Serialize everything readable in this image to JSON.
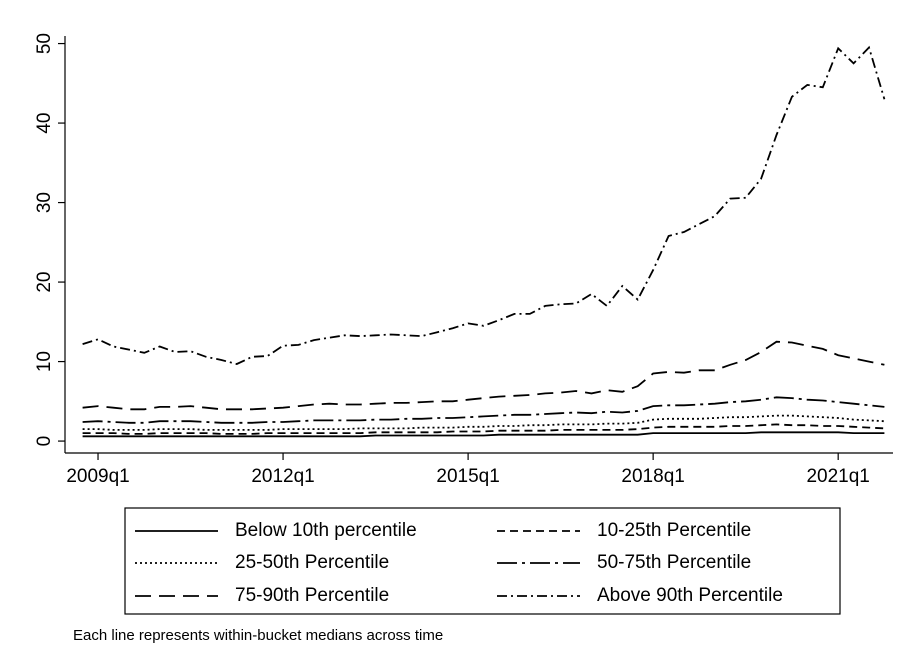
{
  "chart_data": {
    "type": "line",
    "x": [
      "2008q4",
      "2009q1",
      "2009q2",
      "2009q3",
      "2009q4",
      "2010q1",
      "2010q2",
      "2010q3",
      "2010q4",
      "2011q1",
      "2011q2",
      "2011q3",
      "2011q4",
      "2012q1",
      "2012q2",
      "2012q3",
      "2012q4",
      "2013q1",
      "2013q2",
      "2013q3",
      "2013q4",
      "2014q1",
      "2014q2",
      "2014q3",
      "2014q4",
      "2015q1",
      "2015q2",
      "2015q3",
      "2015q4",
      "2016q1",
      "2016q2",
      "2016q3",
      "2016q4",
      "2017q1",
      "2017q2",
      "2017q3",
      "2017q4",
      "2018q1",
      "2018q2",
      "2018q3",
      "2018q4",
      "2019q1",
      "2019q2",
      "2019q3",
      "2019q4",
      "2020q1",
      "2020q2",
      "2020q3",
      "2020q4",
      "2021q1",
      "2021q2",
      "2021q3",
      "2021q4"
    ],
    "series": [
      {
        "name": "Below 10th percentile",
        "color": "#000000",
        "dash": "none",
        "values": [
          0.6,
          0.6,
          0.6,
          0.6,
          0.6,
          0.6,
          0.6,
          0.6,
          0.6,
          0.6,
          0.6,
          0.6,
          0.6,
          0.6,
          0.6,
          0.6,
          0.6,
          0.6,
          0.6,
          0.7,
          0.7,
          0.7,
          0.7,
          0.7,
          0.7,
          0.7,
          0.7,
          0.8,
          0.8,
          0.8,
          0.8,
          0.8,
          0.8,
          0.8,
          0.8,
          0.8,
          0.8,
          1.0,
          1.0,
          1.0,
          1.0,
          1.0,
          1.0,
          1.0,
          1.1,
          1.1,
          1.1,
          1.1,
          1.1,
          1.1,
          1.0,
          1.0,
          1.0
        ]
      },
      {
        "name": "10-25th Percentile",
        "color": "#000000",
        "dash": "8,5",
        "values": [
          1.0,
          1.0,
          1.0,
          0.9,
          0.9,
          1.0,
          1.0,
          1.0,
          1.0,
          0.9,
          0.9,
          0.9,
          1.0,
          1.0,
          1.0,
          1.0,
          1.0,
          1.0,
          1.0,
          1.1,
          1.1,
          1.1,
          1.1,
          1.1,
          1.2,
          1.2,
          1.2,
          1.3,
          1.3,
          1.3,
          1.3,
          1.4,
          1.4,
          1.4,
          1.4,
          1.4,
          1.5,
          1.7,
          1.8,
          1.8,
          1.8,
          1.8,
          1.9,
          1.9,
          2.0,
          2.1,
          2.0,
          2.0,
          1.9,
          1.9,
          1.8,
          1.7,
          1.6
        ]
      },
      {
        "name": "25-50th Percentile",
        "color": "#000000",
        "dash": "2,3",
        "values": [
          1.5,
          1.5,
          1.4,
          1.4,
          1.4,
          1.5,
          1.5,
          1.5,
          1.4,
          1.4,
          1.4,
          1.4,
          1.4,
          1.5,
          1.5,
          1.5,
          1.5,
          1.5,
          1.6,
          1.6,
          1.6,
          1.6,
          1.7,
          1.7,
          1.7,
          1.8,
          1.8,
          1.9,
          1.9,
          2.0,
          2.0,
          2.1,
          2.1,
          2.1,
          2.2,
          2.2,
          2.3,
          2.7,
          2.8,
          2.8,
          2.8,
          2.9,
          3.0,
          3.0,
          3.1,
          3.2,
          3.2,
          3.1,
          3.0,
          2.9,
          2.7,
          2.6,
          2.5
        ]
      },
      {
        "name": "50-75th Percentile",
        "color": "#000000",
        "dash": "20,5,3,5",
        "values": [
          2.4,
          2.5,
          2.4,
          2.3,
          2.3,
          2.5,
          2.5,
          2.5,
          2.4,
          2.3,
          2.3,
          2.3,
          2.4,
          2.4,
          2.5,
          2.6,
          2.6,
          2.6,
          2.6,
          2.7,
          2.7,
          2.8,
          2.8,
          2.9,
          2.9,
          3.0,
          3.1,
          3.2,
          3.3,
          3.3,
          3.4,
          3.5,
          3.6,
          3.5,
          3.7,
          3.6,
          3.8,
          4.4,
          4.5,
          4.5,
          4.6,
          4.7,
          4.9,
          5.0,
          5.2,
          5.5,
          5.4,
          5.2,
          5.1,
          4.9,
          4.7,
          4.5,
          4.3
        ]
      },
      {
        "name": "75-90th Percentile",
        "color": "#000000",
        "dash": "16,8",
        "values": [
          4.2,
          4.4,
          4.2,
          4.0,
          4.0,
          4.3,
          4.3,
          4.4,
          4.2,
          4.0,
          4.0,
          4.0,
          4.1,
          4.2,
          4.4,
          4.6,
          4.7,
          4.6,
          4.6,
          4.7,
          4.8,
          4.8,
          4.9,
          5.0,
          5.0,
          5.2,
          5.4,
          5.6,
          5.7,
          5.8,
          6.0,
          6.1,
          6.3,
          6.0,
          6.4,
          6.2,
          6.9,
          8.5,
          8.7,
          8.6,
          8.9,
          8.9,
          9.6,
          10.2,
          11.2,
          12.5,
          12.4,
          12.0,
          11.6,
          10.8,
          10.4,
          10.0,
          9.6
        ]
      },
      {
        "name": "Above 90th Percentile",
        "color": "#000000",
        "dash": "10,4,2,4",
        "values": [
          12.2,
          12.8,
          11.9,
          11.5,
          11.1,
          11.9,
          11.2,
          11.3,
          10.6,
          10.2,
          9.7,
          10.6,
          10.7,
          12.0,
          12.1,
          12.7,
          13.0,
          13.3,
          13.2,
          13.3,
          13.4,
          13.3,
          13.2,
          13.7,
          14.2,
          14.8,
          14.5,
          15.2,
          16.0,
          16.0,
          17.0,
          17.2,
          17.3,
          18.5,
          17.0,
          19.5,
          17.8,
          21.5,
          25.8,
          26.3,
          27.3,
          28.3,
          30.5,
          30.6,
          33.0,
          38.5,
          43.3,
          44.8,
          44.5,
          49.4,
          47.5,
          49.5,
          43.0
        ]
      }
    ],
    "xticks": [
      "2009q1",
      "2012q1",
      "2015q1",
      "2018q1",
      "2021q1"
    ],
    "ylim": [
      -1.5,
      50.7
    ],
    "yticks": [
      0,
      10,
      20,
      30,
      40,
      50
    ],
    "note": "Each line represents within-bucket medians across time"
  }
}
